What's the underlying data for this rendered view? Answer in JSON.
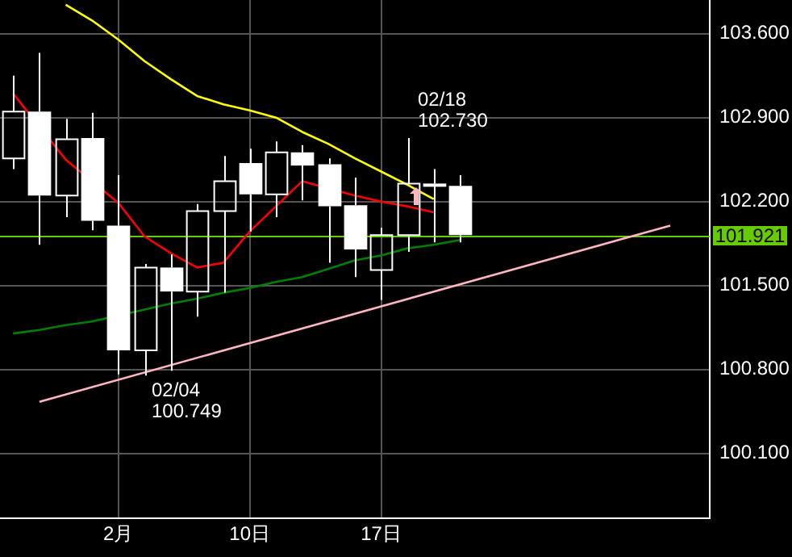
{
  "chart_data": {
    "type": "candlestick",
    "categories": [
      null,
      null,
      null,
      null,
      "2月",
      null,
      null,
      null,
      null,
      "10日",
      null,
      null,
      null,
      null,
      "17日",
      null,
      null,
      null,
      null,
      null,
      null,
      null,
      null,
      null,
      null,
      null,
      null
    ],
    "ohlc": [
      [
        102.56,
        103.25,
        102.47,
        102.95
      ],
      [
        102.95,
        103.44,
        101.84,
        102.25
      ],
      [
        102.25,
        102.89,
        102.07,
        102.72
      ],
      [
        102.73,
        102.94,
        101.96,
        102.04
      ],
      [
        102.0,
        102.42,
        100.76,
        100.96
      ],
      [
        100.96,
        101.68,
        100.749,
        101.65
      ],
      [
        101.65,
        101.76,
        100.79,
        101.45
      ],
      [
        101.45,
        102.18,
        101.24,
        102.12
      ],
      [
        102.12,
        102.58,
        101.44,
        102.37
      ],
      [
        102.52,
        102.64,
        101.95,
        102.26
      ],
      [
        102.26,
        102.7,
        102.07,
        102.61
      ],
      [
        102.61,
        102.67,
        102.21,
        102.5
      ],
      [
        102.51,
        102.56,
        101.69,
        102.16
      ],
      [
        102.17,
        102.4,
        101.57,
        101.8
      ],
      [
        101.63,
        101.98,
        101.38,
        101.92
      ],
      [
        101.92,
        102.73,
        101.78,
        102.35
      ],
      [
        102.35,
        102.47,
        101.86,
        102.33
      ],
      [
        102.33,
        102.42,
        101.86,
        101.921
      ],
      null,
      null,
      null,
      null,
      null,
      null,
      null,
      null,
      null
    ],
    "color": "#ffffff",
    "series": [
      {
        "type": "line",
        "color": "#ffff00",
        "values": [
          null,
          null,
          103.84,
          103.71,
          103.55,
          103.37,
          103.22,
          103.08,
          103.01,
          102.96,
          102.9,
          102.78,
          102.68,
          102.56,
          102.45,
          102.34,
          102.22,
          null,
          null,
          null,
          null,
          null,
          null,
          null,
          null,
          null,
          null
        ]
      },
      {
        "type": "line",
        "color": "#ff0000",
        "values": [
          103.1,
          null,
          102.55,
          null,
          102.19,
          101.91,
          101.77,
          101.65,
          101.69,
          101.95,
          102.16,
          102.37,
          null,
          102.25,
          102.2,
          102.16,
          102.11,
          null,
          null,
          null,
          null,
          null,
          null,
          null,
          null,
          null,
          null
        ]
      },
      {
        "type": "line",
        "color": "#008000",
        "values": [
          101.1,
          101.13,
          101.17,
          101.2,
          null,
          101.3,
          101.35,
          101.39,
          101.44,
          101.48,
          101.53,
          101.57,
          101.64,
          101.71,
          101.75,
          101.81,
          101.84,
          101.88,
          null,
          null,
          null,
          null,
          null,
          null,
          null,
          null,
          null
        ]
      },
      {
        "type": "line",
        "color": "#ffb6c1",
        "values": [
          null,
          100.53,
          null,
          null,
          null,
          null,
          null,
          null,
          null,
          null,
          null,
          null,
          null,
          null,
          null,
          null,
          null,
          null,
          null,
          null,
          null,
          null,
          null,
          null,
          null,
          102.0,
          null
        ]
      }
    ],
    "ylim": [
      99.56,
      103.88
    ],
    "yticks": [
      {
        "value": 100.1,
        "label": "100.100"
      },
      {
        "value": 100.8,
        "label": "100.800"
      },
      {
        "value": 101.5,
        "label": "101.500"
      },
      {
        "value": 102.2,
        "label": "102.200"
      },
      {
        "value": 102.9,
        "label": "102.900"
      },
      {
        "value": 103.6,
        "label": "103.600"
      }
    ],
    "grid": true,
    "legend": false,
    "ref_lines": [
      {
        "axis": "y",
        "value": 101.921,
        "label": "101.921",
        "color": "#66cc00"
      }
    ],
    "annotations": [
      "02/04\n100.749",
      "02/18\n102.730"
    ]
  }
}
